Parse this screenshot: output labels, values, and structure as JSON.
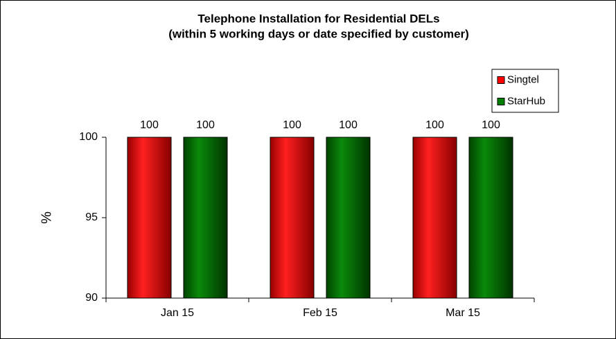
{
  "chart_data": {
    "type": "bar",
    "title": "Telephone Installation for Residential DELs",
    "subtitle": "(within 5 working days or date specified by customer)",
    "y_label": "%",
    "categories": [
      "Jan 15",
      "Feb 15",
      "Mar 15"
    ],
    "series": [
      {
        "name": "Singtel",
        "color": "#ff0000",
        "values": [
          100,
          100,
          100
        ]
      },
      {
        "name": "StarHub",
        "color": "#008000",
        "values": [
          100,
          100,
          100
        ]
      }
    ],
    "ylim": [
      90,
      100
    ],
    "yticks": [
      90,
      95,
      100
    ],
    "grid": false,
    "legend": "top-right"
  }
}
